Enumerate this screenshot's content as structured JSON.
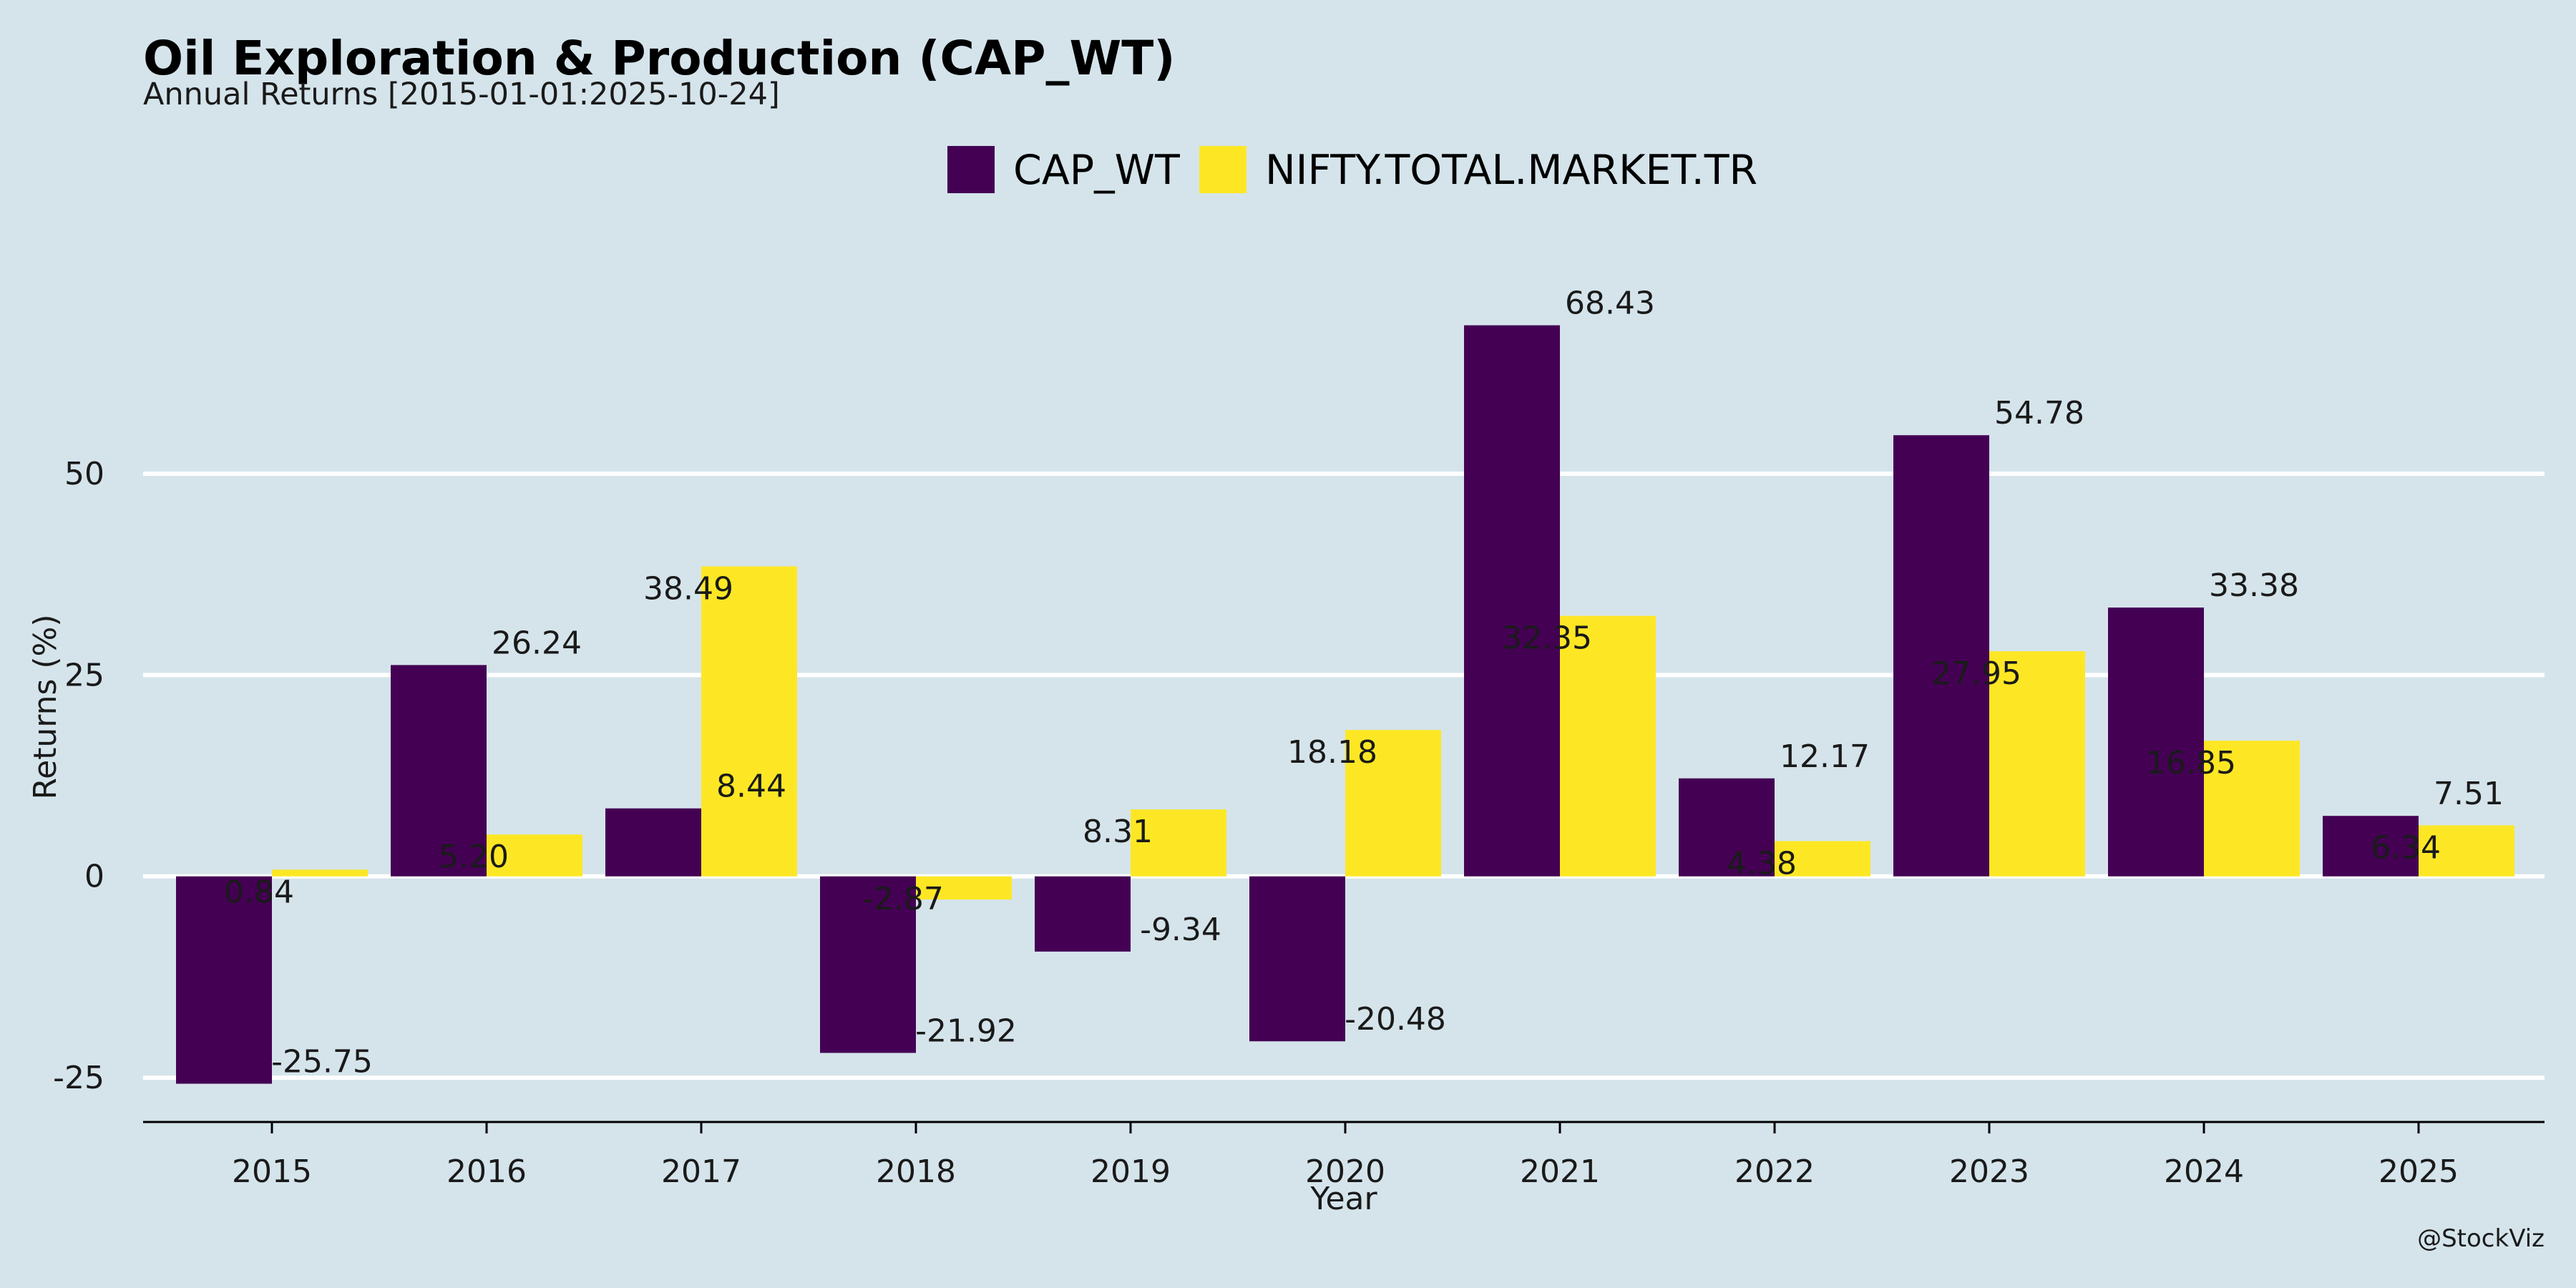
{
  "chart_data": {
    "type": "bar",
    "title": "Oil Exploration & Production (CAP_WT)",
    "subtitle": "Annual Returns [2015-01-01:2025-10-24]",
    "xlabel": "Year",
    "ylabel": "Returns (%)",
    "categories": [
      "2015",
      "2016",
      "2017",
      "2018",
      "2019",
      "2020",
      "2021",
      "2022",
      "2023",
      "2024",
      "2025"
    ],
    "series": [
      {
        "name": "CAP_WT",
        "color": "#440154",
        "values": [
          -25.75,
          26.24,
          8.44,
          -21.92,
          -9.34,
          -20.48,
          68.43,
          12.17,
          54.78,
          33.38,
          7.51
        ],
        "labels": [
          "-25.75",
          "26.24",
          "8.44",
          "-21.92",
          "-9.34",
          "-20.48",
          "68.43",
          "12.17",
          "54.78",
          "33.38",
          "7.51"
        ]
      },
      {
        "name": "NIFTY.TOTAL.MARKET.TR",
        "color": "#fde725",
        "values": [
          0.84,
          5.2,
          38.49,
          -2.87,
          8.31,
          18.18,
          32.35,
          4.38,
          27.95,
          16.85,
          6.34
        ],
        "labels": [
          "0.84",
          "5.20",
          "38.49",
          "-2.87",
          "8.31",
          "18.18",
          "32.35",
          "4.38",
          "27.95",
          "16.85",
          "6.34"
        ]
      }
    ],
    "ylim": [
      -30.5,
      79.5
    ],
    "yticks": [
      -25,
      0,
      25,
      50
    ],
    "grid": true,
    "legend_position": "top-center"
  },
  "caption": "@StockViz"
}
